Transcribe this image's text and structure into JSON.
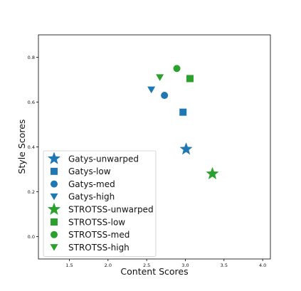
{
  "chart_data": {
    "type": "scatter",
    "title": "",
    "xlabel": "Content Scores",
    "ylabel": "Style Scores",
    "xlim": [
      1.1,
      4.1
    ],
    "ylim": [
      -0.1,
      0.9
    ],
    "grid": false,
    "legend_position": "lower-left",
    "x_ticks": [
      1.5,
      2.0,
      2.5,
      3.0,
      3.5,
      4.0
    ],
    "x_tick_labels": [
      "1.5",
      "2.0",
      "2.5",
      "3.0",
      "3.5",
      "4.0"
    ],
    "y_ticks": [
      0.0,
      0.2,
      0.4,
      0.6,
      0.8
    ],
    "y_tick_labels": [
      "0.0",
      "0.2",
      "0.4",
      "0.6",
      "0.8"
    ],
    "colors": {
      "gatys": "#1f77b4",
      "strotss": "#2ca02c"
    },
    "series": [
      {
        "name": "Gatys-unwarped",
        "marker": "star",
        "color": "#1f77b4",
        "x": 3.01,
        "y": 0.39
      },
      {
        "name": "Gatys-low",
        "marker": "square",
        "color": "#1f77b4",
        "x": 2.97,
        "y": 0.555
      },
      {
        "name": "Gatys-med",
        "marker": "circle",
        "color": "#1f77b4",
        "x": 2.73,
        "y": 0.63
      },
      {
        "name": "Gatys-high",
        "marker": "triangle-down",
        "color": "#1f77b4",
        "x": 2.56,
        "y": 0.655
      },
      {
        "name": "STROTSS-unwarped",
        "marker": "star",
        "color": "#2ca02c",
        "x": 3.35,
        "y": 0.28
      },
      {
        "name": "STROTSS-low",
        "marker": "square",
        "color": "#2ca02c",
        "x": 3.06,
        "y": 0.705
      },
      {
        "name": "STROTSS-med",
        "marker": "circle",
        "color": "#2ca02c",
        "x": 2.89,
        "y": 0.75
      },
      {
        "name": "STROTSS-high",
        "marker": "triangle-down",
        "color": "#2ca02c",
        "x": 2.67,
        "y": 0.71
      }
    ]
  }
}
